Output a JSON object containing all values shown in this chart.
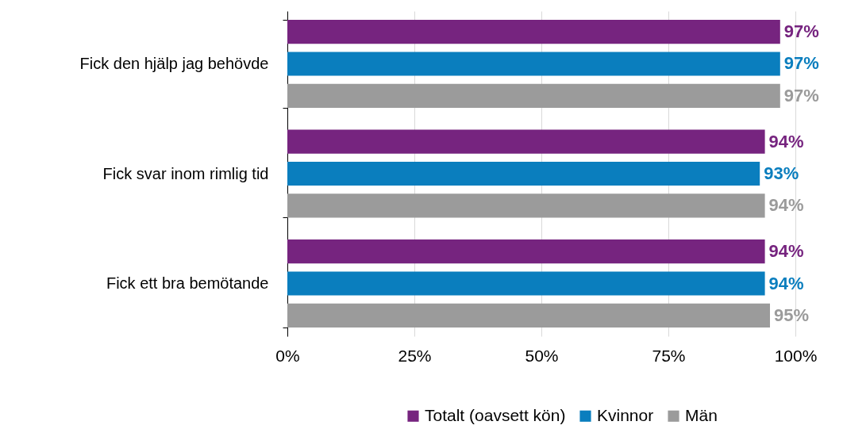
{
  "chart_data": {
    "type": "bar",
    "orientation": "horizontal",
    "categories": [
      "Fick den hjälp jag behövde",
      "Fick svar inom rimlig tid",
      "Fick ett bra bemötande"
    ],
    "series": [
      {
        "name": "Totalt (oavsett kön)",
        "color": "#76247f",
        "values": [
          97,
          94,
          94
        ],
        "value_labels": [
          "97%",
          "94%",
          "94%"
        ]
      },
      {
        "name": "Kvinnor",
        "color": "#0a7ebe",
        "values": [
          97,
          93,
          94
        ],
        "value_labels": [
          "97%",
          "93%",
          "94%"
        ]
      },
      {
        "name": "Män",
        "color": "#9b9b9b",
        "values": [
          97,
          94,
          95
        ],
        "value_labels": [
          "97%",
          "94%",
          "95%"
        ]
      }
    ],
    "xlim": [
      0,
      100
    ],
    "xticks": [
      {
        "value": 0,
        "label": "0%"
      },
      {
        "value": 25,
        "label": "25%"
      },
      {
        "value": 50,
        "label": "50%"
      },
      {
        "value": 75,
        "label": "75%"
      },
      {
        "value": 100,
        "label": "100%"
      }
    ],
    "grid": "x",
    "legend": "bottom right"
  }
}
